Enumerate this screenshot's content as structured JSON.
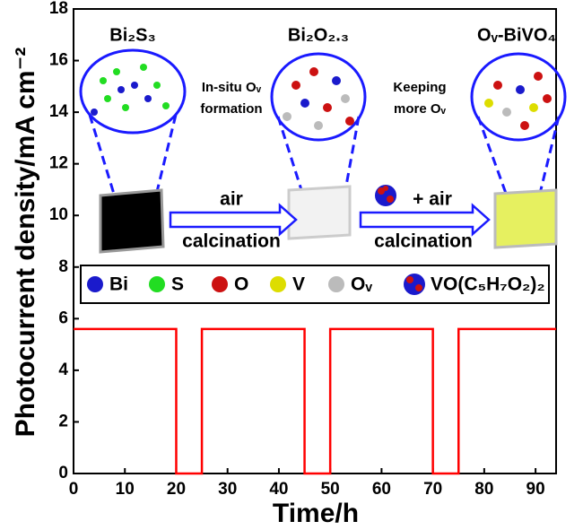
{
  "chart_data": {
    "type": "line",
    "x_label": "Time/h",
    "y_label": "Photocurrent density/mA cm⁻²",
    "xlim": [
      0,
      94
    ],
    "xticks": [
      0,
      10,
      20,
      30,
      40,
      50,
      60,
      70,
      80,
      90
    ],
    "ylim": [
      0,
      18
    ],
    "yticks": [
      0,
      2,
      4,
      6,
      8,
      10,
      12,
      14,
      16,
      18
    ],
    "series": [
      {
        "color": "#ff0000",
        "x": [
          0,
          20,
          20,
          25,
          25,
          45,
          45,
          50,
          50,
          70,
          70,
          75,
          75,
          94
        ],
        "values": [
          5.6,
          5.6,
          0,
          0,
          5.6,
          5.6,
          0,
          0,
          5.6,
          5.6,
          0,
          0,
          5.6,
          5.6
        ]
      }
    ],
    "annotations": {
      "bi2s3": "Bi₂S₃",
      "bi2o23": "Bi₂O₂.₃",
      "ovbivo4": "Oᵥ-BiVO₄",
      "insitu": "In-situ Oᵥ",
      "formation": "formation",
      "keeping": "Keeping",
      "more": "more Oᵥ",
      "air1": "air",
      "calc1": "calcination",
      "air2": "+ air",
      "calc2": "calcination"
    },
    "legend": [
      "Bi",
      "S",
      "O",
      "V",
      "Oᵥ",
      "VO(C₅H₇O₂)₂"
    ]
  }
}
